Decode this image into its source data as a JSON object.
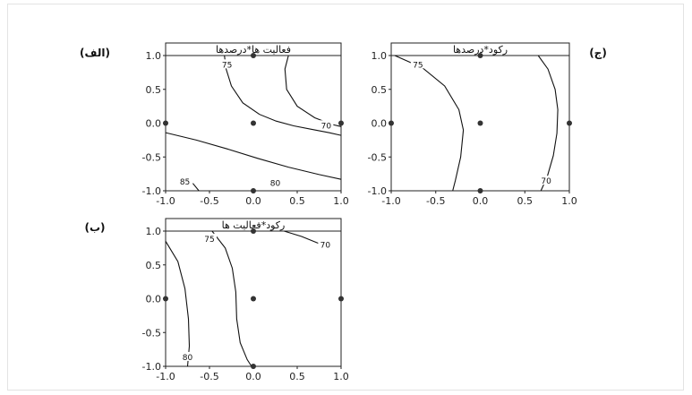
{
  "chart_data": [
    {
      "type": "contour",
      "panel_tag": "(الف)",
      "title": "فعالیت ها*درصدها",
      "xlim": [
        -1.0,
        1.0
      ],
      "ylim": [
        -1.0,
        1.0
      ],
      "xticks": [
        "-1.0",
        "-0.5",
        "0.0",
        "0.5",
        "1.0"
      ],
      "yticks": [
        "1.0",
        "0.5",
        "0.0",
        "-0.5",
        "-1.0"
      ],
      "design_points": [
        [
          0,
          1
        ],
        [
          -1,
          0
        ],
        [
          0,
          0
        ],
        [
          1,
          0
        ],
        [
          0,
          -1
        ]
      ],
      "contours": [
        {
          "level": "75",
          "points": [
            [
              -0.33,
              1.0
            ],
            [
              -0.31,
              0.8
            ],
            [
              -0.25,
              0.55
            ],
            [
              -0.12,
              0.3
            ],
            [
              0.07,
              0.13
            ],
            [
              0.26,
              0.03
            ],
            [
              0.46,
              -0.04
            ],
            [
              0.66,
              -0.09
            ],
            [
              0.86,
              -0.14
            ],
            [
              1.0,
              -0.18
            ]
          ],
          "label_at": [
            -0.3,
            0.85
          ]
        },
        {
          "level": "70",
          "points": [
            [
              0.4,
              1.0
            ],
            [
              0.36,
              0.8
            ],
            [
              0.38,
              0.5
            ],
            [
              0.5,
              0.25
            ],
            [
              0.7,
              0.08
            ],
            [
              0.9,
              -0.02
            ],
            [
              1.0,
              -0.05
            ]
          ],
          "label_at": [
            0.83,
            -0.05
          ]
        },
        {
          "level": "80",
          "points": [
            [
              -1.0,
              -0.14
            ],
            [
              -0.65,
              -0.25
            ],
            [
              -0.3,
              -0.38
            ],
            [
              0.05,
              -0.52
            ],
            [
              0.4,
              -0.65
            ],
            [
              0.75,
              -0.76
            ],
            [
              1.0,
              -0.83
            ]
          ],
          "label_at": [
            0.25,
            -0.9
          ]
        },
        {
          "level": "85",
          "points": [
            [
              -0.62,
              -1.0
            ],
            [
              -0.69,
              -0.89
            ]
          ],
          "label_at": [
            -0.78,
            -0.88
          ]
        }
      ]
    },
    {
      "type": "contour",
      "panel_tag": "(ج)",
      "title": "رکود*درصدها",
      "xlim": [
        -1.0,
        1.0
      ],
      "ylim": [
        -1.0,
        1.0
      ],
      "xticks": [
        "-1.0",
        "-0.5",
        "0.0",
        "0.5",
        "1.0"
      ],
      "yticks": [
        "1.0",
        "0.5",
        "0.0",
        "-0.5",
        "-1.0"
      ],
      "design_points": [
        [
          0,
          1
        ],
        [
          -1,
          0
        ],
        [
          0,
          0
        ],
        [
          1,
          0
        ],
        [
          0,
          -1
        ]
      ],
      "contours": [
        {
          "level": "75",
          "points": [
            [
              -0.96,
              1.0
            ],
            [
              -0.65,
              0.82
            ],
            [
              -0.4,
              0.55
            ],
            [
              -0.24,
              0.2
            ],
            [
              -0.19,
              -0.1
            ],
            [
              -0.22,
              -0.5
            ],
            [
              -0.28,
              -0.85
            ],
            [
              -0.31,
              -1.0
            ]
          ],
          "label_at": [
            -0.7,
            0.85
          ]
        },
        {
          "level": "70",
          "points": [
            [
              0.65,
              1.0
            ],
            [
              0.76,
              0.8
            ],
            [
              0.84,
              0.5
            ],
            [
              0.87,
              0.2
            ],
            [
              0.86,
              -0.15
            ],
            [
              0.82,
              -0.48
            ],
            [
              0.75,
              -0.8
            ],
            [
              0.68,
              -1.0
            ]
          ],
          "label_at": [
            0.74,
            -0.87
          ]
        }
      ]
    },
    {
      "type": "contour",
      "panel_tag": "(ب)",
      "title": "رکود*فعالیت ها",
      "xlim": [
        -1.0,
        1.0
      ],
      "ylim": [
        -1.0,
        1.0
      ],
      "xticks": [
        "-1.0",
        "-0.5",
        "0.0",
        "0.5",
        "1.0"
      ],
      "yticks": [
        "1.0",
        "0.5",
        "0.0",
        "-0.5",
        "-1.0"
      ],
      "design_points": [
        [
          0,
          1
        ],
        [
          -1,
          0
        ],
        [
          0,
          0
        ],
        [
          1,
          0
        ],
        [
          0,
          -1
        ]
      ],
      "contours": [
        {
          "level": "80",
          "points": [
            [
              -1.0,
              0.85
            ],
            [
              -0.86,
              0.55
            ],
            [
              -0.78,
              0.15
            ],
            [
              -0.74,
              -0.3
            ],
            [
              -0.73,
              -0.7
            ],
            [
              -0.75,
              -1.0
            ]
          ],
          "label_at": [
            -0.75,
            -0.88
          ]
        },
        {
          "level": "75",
          "points": [
            [
              -0.47,
              1.0
            ],
            [
              -0.32,
              0.75
            ],
            [
              -0.24,
              0.45
            ],
            [
              -0.2,
              0.1
            ],
            [
              -0.19,
              -0.3
            ],
            [
              -0.15,
              -0.65
            ],
            [
              -0.07,
              -0.9
            ],
            [
              -0.02,
              -1.0
            ]
          ],
          "label_at": [
            -0.5,
            0.87
          ]
        },
        {
          "level": "70",
          "points": [
            [
              0.35,
              1.0
            ],
            [
              0.55,
              0.92
            ],
            [
              0.78,
              0.8
            ]
          ],
          "label_at": [
            0.82,
            0.78
          ]
        }
      ]
    }
  ]
}
